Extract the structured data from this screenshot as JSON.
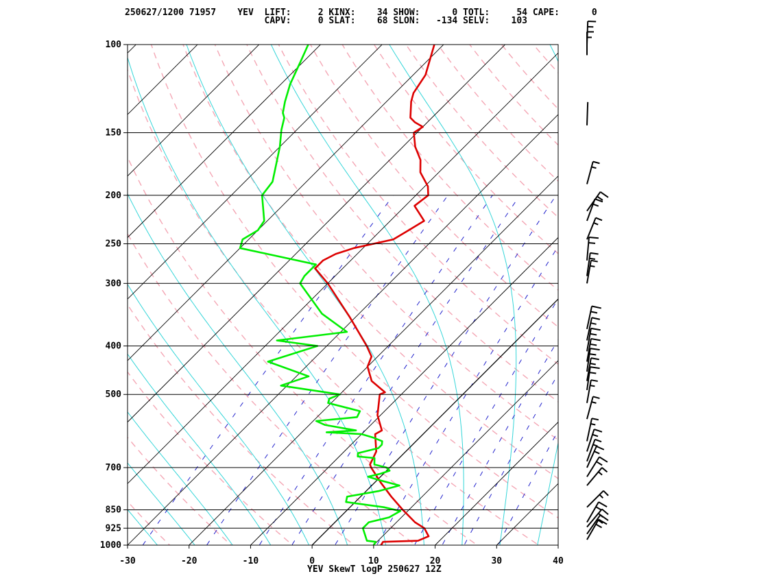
{
  "header": {
    "line1": "250627/1200 71957    YEV  LIFT:     2 KINX:    34 SHOW:      0 TOTL:     54 CAPE:      0",
    "line2": "                          CAPV:     0 SLAT:    68 SLON:   -134 SELV:    103"
  },
  "chart_data": {
    "type": "line",
    "title": "YEV SkewT logP 250627 12Z",
    "xlabel": "",
    "ylabel": "",
    "x_ticks": [
      "-30",
      "-20",
      "-10",
      "0",
      "10",
      "20",
      "30",
      "40"
    ],
    "y_ticks": [
      "100",
      "150",
      "200",
      "250",
      "300",
      "400",
      "500",
      "700",
      "850",
      "925",
      "1000"
    ],
    "pressure_levels": [
      100,
      150,
      200,
      250,
      300,
      400,
      500,
      700,
      850,
      925,
      1000
    ],
    "xlim": [
      -30,
      40
    ],
    "ylim": [
      1000,
      100
    ],
    "skew": "45 degree skewed temperature axis, log pressure vertical axis",
    "series": [
      {
        "color": "#dd0000",
        "points": [
          [
            1005,
            12.0
          ],
          [
            1000,
            11.2
          ],
          [
            985,
            11.0
          ],
          [
            980,
            16.5
          ],
          [
            960,
            17.5
          ],
          [
            925,
            15.5
          ],
          [
            900,
            13.0
          ],
          [
            850,
            9.0
          ],
          [
            800,
            5.0
          ],
          [
            750,
            1.0
          ],
          [
            700,
            -3.0
          ],
          [
            690,
            -3.7
          ],
          [
            650,
            -4.8
          ],
          [
            600,
            -7.8
          ],
          [
            590,
            -7.3
          ],
          [
            550,
            -10.5
          ],
          [
            500,
            -13.5
          ],
          [
            495,
            -13.0
          ],
          [
            470,
            -17.0
          ],
          [
            440,
            -20.0
          ],
          [
            420,
            -21.0
          ],
          [
            400,
            -23.5
          ],
          [
            350,
            -31.0
          ],
          [
            300,
            -40.0
          ],
          [
            280,
            -44.5
          ],
          [
            270,
            -44.5
          ],
          [
            262,
            -43.5
          ],
          [
            255,
            -41.5
          ],
          [
            245,
            -36.5
          ],
          [
            235,
            -35.5
          ],
          [
            225,
            -34.5
          ],
          [
            210,
            -38.5
          ],
          [
            200,
            -38.0
          ],
          [
            192,
            -39.5
          ],
          [
            180,
            -43.0
          ],
          [
            170,
            -45.0
          ],
          [
            160,
            -48.0
          ],
          [
            150,
            -50.5
          ],
          [
            146,
            -50.0
          ],
          [
            143,
            -52.0
          ],
          [
            140,
            -53.5
          ],
          [
            130,
            -56.0
          ],
          [
            125,
            -57.0
          ],
          [
            115,
            -58.0
          ],
          [
            100,
            -61.5
          ]
        ]
      },
      {
        "color": "#00ee00",
        "points": [
          [
            1005,
            10.0
          ],
          [
            1000,
            10.0
          ],
          [
            985,
            9.8
          ],
          [
            980,
            8.2
          ],
          [
            945,
            6.5
          ],
          [
            925,
            5.5
          ],
          [
            900,
            5.5
          ],
          [
            880,
            8.0
          ],
          [
            855,
            8.8
          ],
          [
            840,
            5.5
          ],
          [
            820,
            -1.5
          ],
          [
            800,
            -2.2
          ],
          [
            780,
            2.0
          ],
          [
            760,
            4.5
          ],
          [
            740,
            0.0
          ],
          [
            730,
            -2.0
          ],
          [
            720,
            -0.5
          ],
          [
            710,
            0.5
          ],
          [
            700,
            -0.5
          ],
          [
            690,
            -3.0
          ],
          [
            670,
            -4.0
          ],
          [
            665,
            -7.0
          ],
          [
            655,
            -7.5
          ],
          [
            640,
            -5.0
          ],
          [
            630,
            -5.0
          ],
          [
            620,
            -5.5
          ],
          [
            610,
            -7.5
          ],
          [
            600,
            -10.0
          ],
          [
            595,
            -16.0
          ],
          [
            590,
            -11.5
          ],
          [
            575,
            -17.5
          ],
          [
            565,
            -19.5
          ],
          [
            555,
            -13.5
          ],
          [
            540,
            -14.0
          ],
          [
            520,
            -20.5
          ],
          [
            510,
            -21.0
          ],
          [
            500,
            -20.0
          ],
          [
            480,
            -31.0
          ],
          [
            460,
            -28.0
          ],
          [
            430,
            -37.0
          ],
          [
            400,
            -31.5
          ],
          [
            390,
            -39.0
          ],
          [
            375,
            -29.0
          ],
          [
            345,
            -36.0
          ],
          [
            300,
            -44.5
          ],
          [
            290,
            -45.0
          ],
          [
            275,
            -45.0
          ],
          [
            255,
            -60.0
          ],
          [
            245,
            -61.0
          ],
          [
            235,
            -60.0
          ],
          [
            225,
            -60.5
          ],
          [
            200,
            -65.0
          ],
          [
            188,
            -65.5
          ],
          [
            175,
            -67.5
          ],
          [
            160,
            -70.0
          ],
          [
            148,
            -72.5
          ],
          [
            140,
            -74.0
          ],
          [
            137,
            -75.0
          ],
          [
            130,
            -76.5
          ],
          [
            120,
            -78.5
          ],
          [
            108,
            -80.5
          ],
          [
            100,
            -82.0
          ]
        ]
      }
    ],
    "wind_barbs_present": true,
    "grid": true
  }
}
